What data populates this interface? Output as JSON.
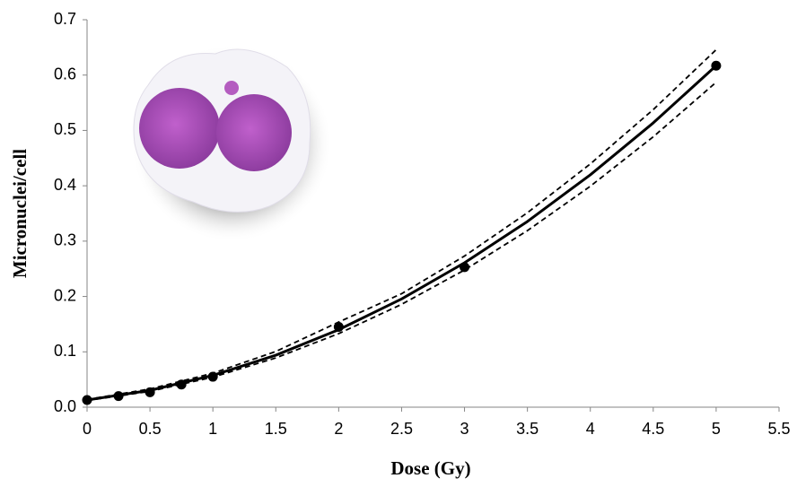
{
  "chart_data": {
    "type": "scatter",
    "x_label": "Dose (Gy)",
    "y_label": "Micronuclei/cell",
    "xlim": [
      0,
      5.5
    ],
    "xticks": [
      0,
      0.5,
      1,
      1.5,
      2,
      2.5,
      3,
      3.5,
      4,
      4.5,
      5,
      5.5
    ],
    "ylim": [
      0,
      0.7
    ],
    "yticks": [
      {
        "value": 0,
        "label": "0.0"
      },
      0.1,
      0.2,
      0.3,
      0.4,
      0.5,
      0.6,
      0.7
    ],
    "grid": false,
    "series": [
      {
        "style": "markers",
        "color": "#000000",
        "x": [
          0,
          0.25,
          0.5,
          0.75,
          1,
          2,
          3,
          5
        ],
        "values": [
          0.013,
          0.02,
          0.027,
          0.041,
          0.055,
          0.145,
          0.253,
          0.617
        ]
      },
      {
        "style": "solid",
        "color": "#000000",
        "x": [
          0,
          0.5,
          1,
          1.5,
          2,
          2.5,
          3,
          3.5,
          4,
          4.5,
          5
        ],
        "values": [
          0.013,
          0.0304,
          0.0574,
          0.0939,
          0.14,
          0.1956,
          0.2608,
          0.3355,
          0.4198,
          0.5136,
          0.617
        ]
      },
      {
        "style": "dashed",
        "color": "#000000",
        "x": [
          0,
          0.5,
          1,
          1.5,
          2,
          2.5,
          3,
          3.5,
          4,
          4.5,
          5
        ],
        "values": [
          0.014,
          0.0329,
          0.0614,
          0.1006,
          0.1538,
          0.205,
          0.2731,
          0.3513,
          0.4395,
          0.5376,
          0.6458
        ]
      },
      {
        "style": "dashed",
        "color": "#000000",
        "x": [
          0,
          0.5,
          1,
          1.5,
          2,
          2.5,
          3,
          3.5,
          4,
          4.5,
          5
        ],
        "values": [
          0.012,
          0.0286,
          0.0542,
          0.089,
          0.1329,
          0.1858,
          0.2478,
          0.319,
          0.3992,
          0.4885,
          0.587
        ]
      }
    ]
  }
}
